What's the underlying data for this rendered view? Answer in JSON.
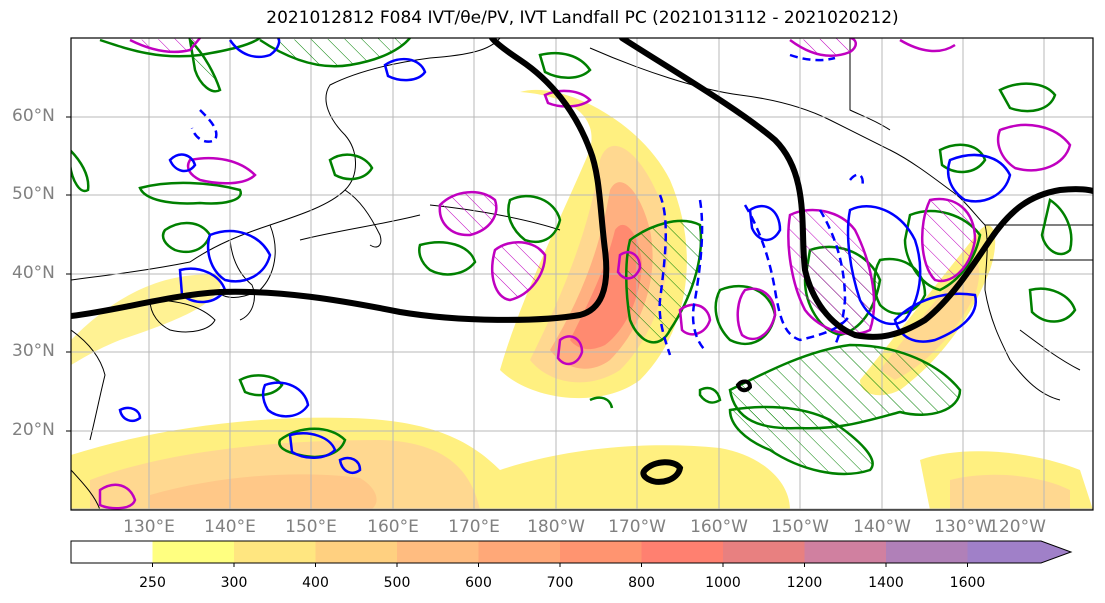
{
  "title": "2021012812 F084 IVT/θe/PV, IVT Landfall PC (2021013112 - 2021020212)",
  "map": {
    "lat_labels": [
      "60°N",
      "50°N",
      "40°N",
      "30°N",
      "20°N"
    ],
    "lon_labels": [
      "130°E",
      "140°E",
      "150°E",
      "160°E",
      "170°E",
      "180°W",
      "170°W",
      "160°W",
      "150°W",
      "140°W",
      "130°W",
      "120°W"
    ],
    "layers": [
      {
        "name": "IVT",
        "style": "filled-contours"
      },
      {
        "name": "θe",
        "color": "#008000",
        "style": "contour-hatched"
      },
      {
        "name": "PV",
        "color": "#c000c0",
        "style": "contour-hatched"
      },
      {
        "name": "wind",
        "color": "#0000ff",
        "style": "contour"
      },
      {
        "name": "IVT Landfall PC",
        "color": "#000000",
        "style": "thick-contour"
      }
    ]
  },
  "colorbar": {
    "ticks": [
      "250",
      "300",
      "400",
      "500",
      "600",
      "700",
      "800",
      "1000",
      "1200",
      "1400",
      "1600"
    ],
    "colors": [
      "#ffffff",
      "#ffff80",
      "#ffe680",
      "#ffd080",
      "#ffbc80",
      "#ffa878",
      "#ff9470",
      "#ff8070",
      "#e88080",
      "#d080a0",
      "#b080b8",
      "#a080c8"
    ]
  }
}
